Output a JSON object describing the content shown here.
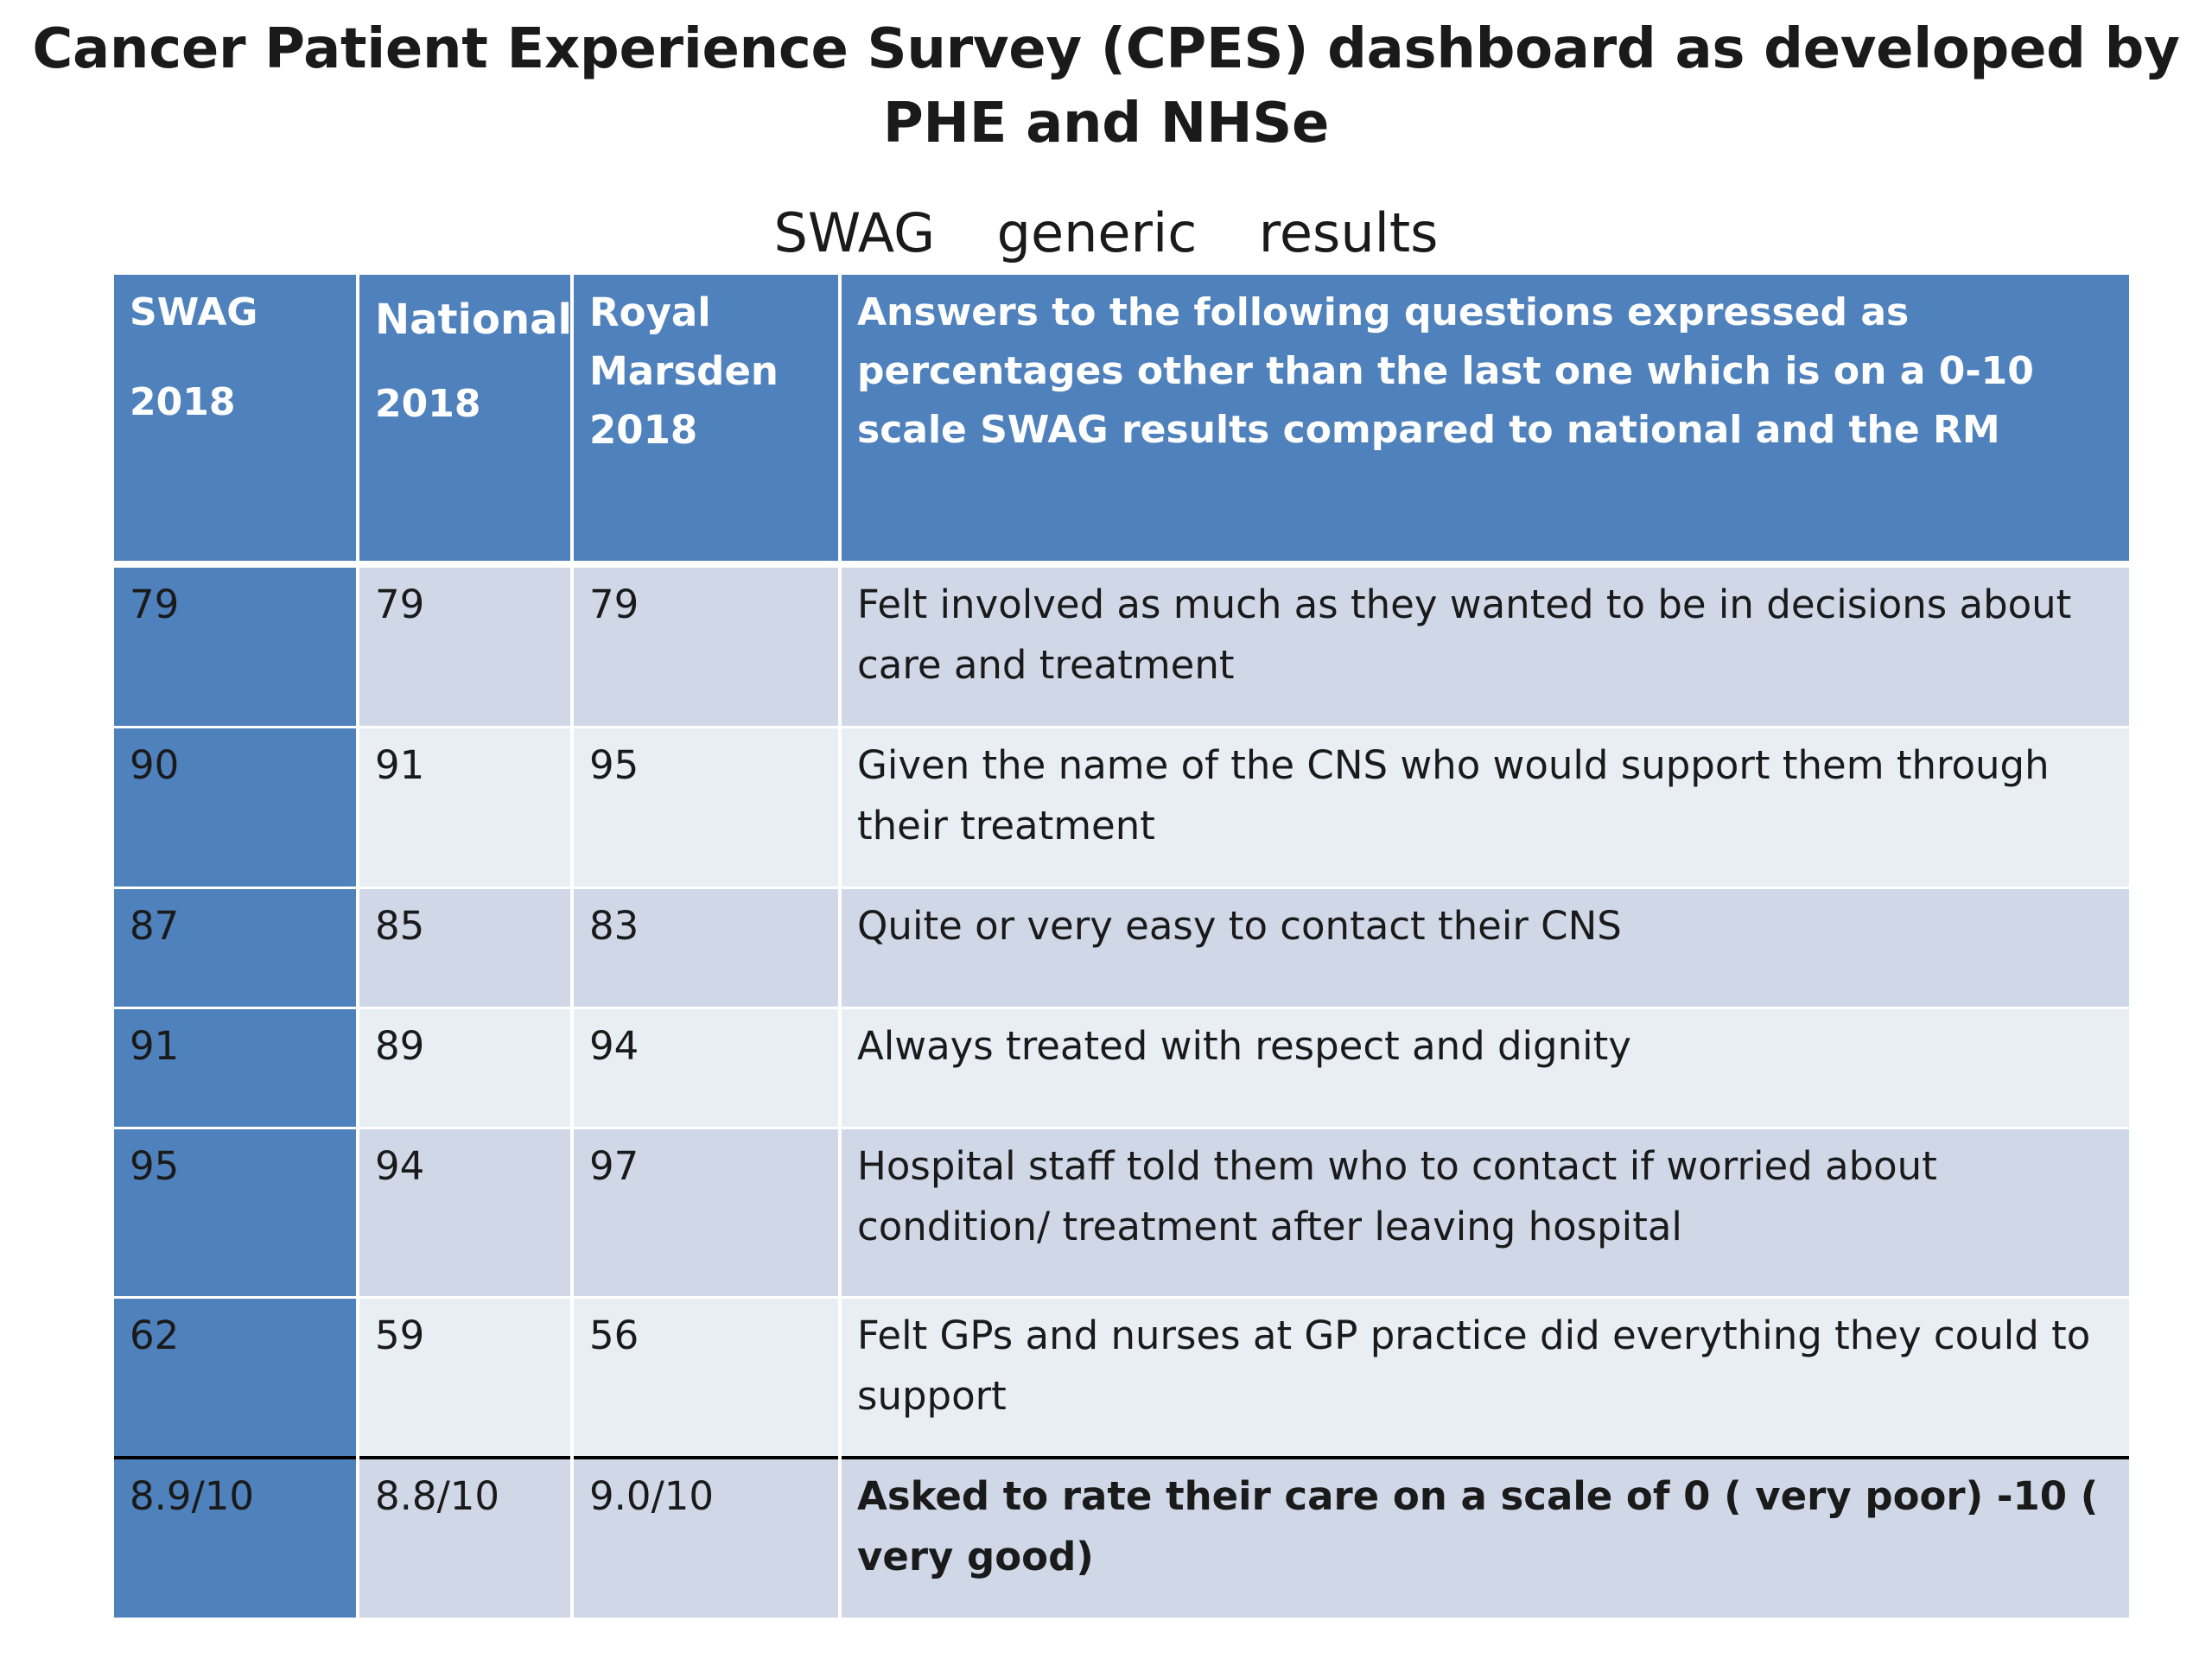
{
  "title": {
    "line1": "Cancer Patient Experience Survey (CPES) dashboard as developed by",
    "line2": "PHE and NHSe"
  },
  "subtitle": "SWAG  generic  results",
  "table": {
    "headers": {
      "swag": [
        "SWAG",
        "2018"
      ],
      "national": [
        "National",
        "2018"
      ],
      "royal_marsden": [
        "Royal",
        "Marsden",
        "2018"
      ],
      "description": "Answers to the following questions expressed as percentages other than the last one which is  on a 0-10 scale SWAG results compared to national and the RM"
    },
    "rows": [
      {
        "swag": "79",
        "national": "79",
        "royal_marsden": "79",
        "question": "Felt involved as much as they wanted to be in decisions  about care and treatment"
      },
      {
        "swag": "90",
        "national": "91",
        "royal_marsden": "95",
        "question": "Given the name of the CNS  who would support them through their treatment"
      },
      {
        "swag": "87",
        "national": "85",
        "royal_marsden": "83",
        "question": "Quite or very easy to contact their CNS"
      },
      {
        "swag": "91",
        "national": "89",
        "royal_marsden": "94",
        "question": "Always treated with respect and  dignity"
      },
      {
        "swag": "95",
        "national": "94",
        "royal_marsden": "97",
        "question": "Hospital staff told them who to contact if worried about condition/ treatment  after leaving hospital"
      },
      {
        "swag": "62",
        "national": "59",
        "royal_marsden": "56",
        "question": "Felt GPs and nurses at GP practice did everything they could to support"
      },
      {
        "swag": "8.9/10",
        "national": "8.8/10",
        "royal_marsden": "9.0/10",
        "question": "Asked to rate their care on a scale of 0 ( very poor) -10 ( very good)"
      }
    ]
  },
  "colors": {
    "header_blue": "#4f81bd",
    "row_dark": "#d0d8e8",
    "row_light": "#e9edf4"
  }
}
